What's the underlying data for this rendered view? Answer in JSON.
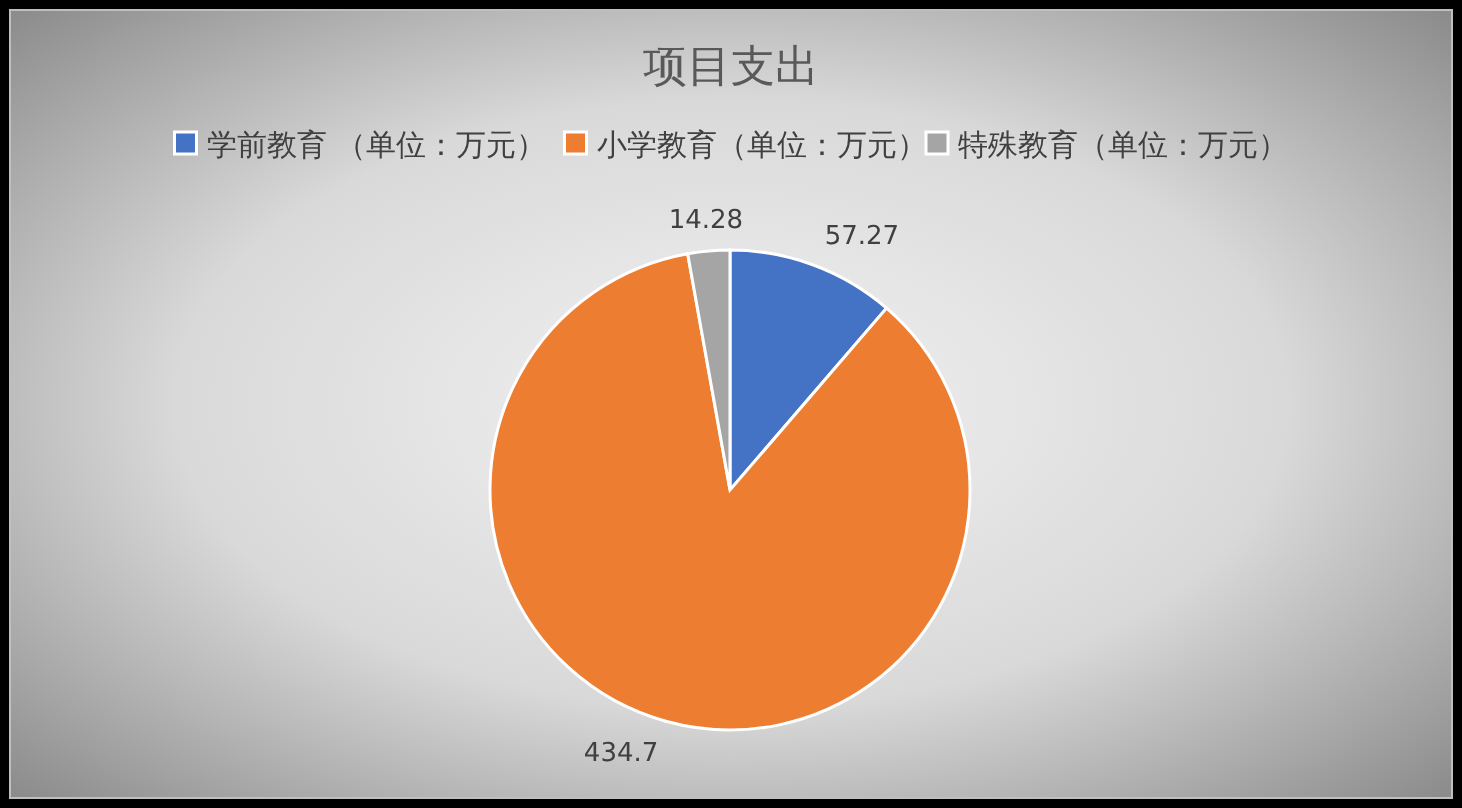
{
  "chart_data": {
    "type": "pie",
    "title": "项目支出",
    "categories": [
      "学前教育 （单位：万元）",
      "小学教育（单位：万元）",
      "特殊教育（单位：万元）"
    ],
    "values": [
      57.27,
      434.7,
      14.28
    ],
    "colors": [
      "#4472c4",
      "#ed7d31",
      "#a5a5a5"
    ],
    "data_labels": true,
    "legend": "top"
  }
}
